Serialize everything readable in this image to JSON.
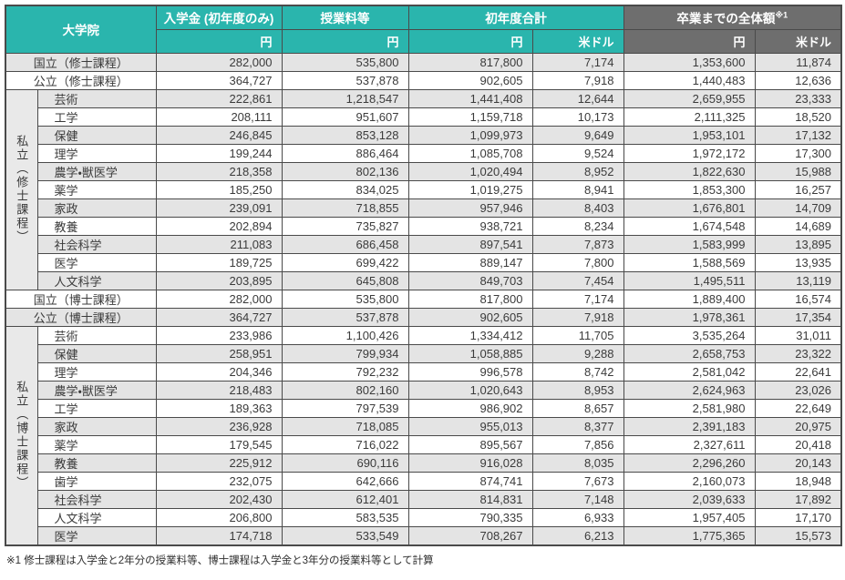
{
  "colors": {
    "header_teal": "#2ab5ad",
    "header_gray": "#6e6e6e",
    "row_stripe": "#e4e4e4",
    "group_cell_bg": "#e9e9e9",
    "border": "#4a4a4a"
  },
  "table": {
    "header": {
      "graduate_school": "大学院",
      "admission_fee": "入学金 (初年度のみ)",
      "tuition": "授業料等",
      "first_year_total": "初年度合計",
      "graduation_total": "卒業までの全体額",
      "graduation_total_note": "※1",
      "yen": "円",
      "usd": "米ドル"
    },
    "groups": {
      "private_masters": "私立（修士課程）",
      "private_doctoral": "私立（博士課程）"
    },
    "rows": [
      {
        "label": "国立（修士課程）",
        "full": true,
        "values": [
          "282,000",
          "535,800",
          "817,800",
          "7,174",
          "1,353,600",
          "11,874"
        ]
      },
      {
        "label": "公立（修士課程）",
        "full": true,
        "values": [
          "364,727",
          "537,878",
          "902,605",
          "7,918",
          "1,440,483",
          "12,636"
        ]
      },
      {
        "label": "芸術",
        "group_start": "private_masters",
        "group_rowspan": 11,
        "values": [
          "222,861",
          "1,218,547",
          "1,441,408",
          "12,644",
          "2,659,955",
          "23,333"
        ]
      },
      {
        "label": "工学",
        "values": [
          "208,111",
          "951,607",
          "1,159,718",
          "10,173",
          "2,111,325",
          "18,520"
        ]
      },
      {
        "label": "保健",
        "values": [
          "246,845",
          "853,128",
          "1,099,973",
          "9,649",
          "1,953,101",
          "17,132"
        ]
      },
      {
        "label": "理学",
        "values": [
          "199,244",
          "886,464",
          "1,085,708",
          "9,524",
          "1,972,172",
          "17,300"
        ]
      },
      {
        "label": "農学・獣医学",
        "values": [
          "218,358",
          "802,136",
          "1,020,494",
          "8,952",
          "1,822,630",
          "15,988"
        ]
      },
      {
        "label": "薬学",
        "values": [
          "185,250",
          "834,025",
          "1,019,275",
          "8,941",
          "1,853,300",
          "16,257"
        ]
      },
      {
        "label": "家政",
        "values": [
          "239,091",
          "718,855",
          "957,946",
          "8,403",
          "1,676,801",
          "14,709"
        ]
      },
      {
        "label": "教養",
        "values": [
          "202,894",
          "735,827",
          "938,721",
          "8,234",
          "1,674,548",
          "14,689"
        ]
      },
      {
        "label": "社会科学",
        "values": [
          "211,083",
          "686,458",
          "897,541",
          "7,873",
          "1,583,999",
          "13,895"
        ]
      },
      {
        "label": "医学",
        "values": [
          "189,725",
          "699,422",
          "889,147",
          "7,800",
          "1,588,569",
          "13,935"
        ]
      },
      {
        "label": "人文科学",
        "values": [
          "203,895",
          "645,808",
          "849,703",
          "7,454",
          "1,495,511",
          "13,119"
        ]
      },
      {
        "label": "国立（博士課程）",
        "full": true,
        "values": [
          "282,000",
          "535,800",
          "817,800",
          "7,174",
          "1,889,400",
          "16,574"
        ]
      },
      {
        "label": "公立（博士課程）",
        "full": true,
        "values": [
          "364,727",
          "537,878",
          "902,605",
          "7,918",
          "1,978,361",
          "17,354"
        ]
      },
      {
        "label": "芸術",
        "group_start": "private_doctoral",
        "group_rowspan": 12,
        "values": [
          "233,986",
          "1,100,426",
          "1,334,412",
          "11,705",
          "3,535,264",
          "31,011"
        ]
      },
      {
        "label": "保健",
        "values": [
          "258,951",
          "799,934",
          "1,058,885",
          "9,288",
          "2,658,753",
          "23,322"
        ]
      },
      {
        "label": "理学",
        "values": [
          "204,346",
          "792,232",
          "996,578",
          "8,742",
          "2,581,042",
          "22,641"
        ]
      },
      {
        "label": "農学・獣医学",
        "values": [
          "218,483",
          "802,160",
          "1,020,643",
          "8,953",
          "2,624,963",
          "23,026"
        ]
      },
      {
        "label": "工学",
        "values": [
          "189,363",
          "797,539",
          "986,902",
          "8,657",
          "2,581,980",
          "22,649"
        ]
      },
      {
        "label": "家政",
        "values": [
          "236,928",
          "718,085",
          "955,013",
          "8,377",
          "2,391,183",
          "20,975"
        ]
      },
      {
        "label": "薬学",
        "values": [
          "179,545",
          "716,022",
          "895,567",
          "7,856",
          "2,327,611",
          "20,418"
        ]
      },
      {
        "label": "教養",
        "values": [
          "225,912",
          "690,116",
          "916,028",
          "8,035",
          "2,296,260",
          "20,143"
        ]
      },
      {
        "label": "歯学",
        "values": [
          "232,075",
          "642,666",
          "874,741",
          "7,673",
          "2,160,073",
          "18,948"
        ]
      },
      {
        "label": "社会科学",
        "values": [
          "202,430",
          "612,401",
          "814,831",
          "7,148",
          "2,039,633",
          "17,892"
        ]
      },
      {
        "label": "人文科学",
        "values": [
          "206,800",
          "583,535",
          "790,335",
          "6,933",
          "1,957,405",
          "17,170"
        ]
      },
      {
        "label": "医学",
        "values": [
          "174,718",
          "533,549",
          "708,267",
          "6,213",
          "1,775,365",
          "15,573"
        ]
      }
    ]
  },
  "footnote": "※1 修士課程は入学金と2年分の授業料等、博士課程は入学金と3年分の授業料等として計算"
}
